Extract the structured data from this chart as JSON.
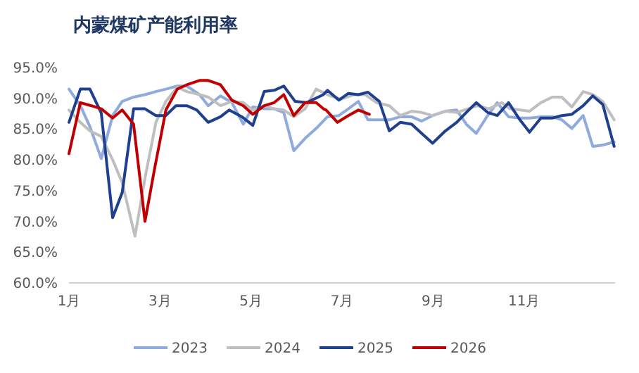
{
  "chart_data": {
    "type": "line",
    "title": "内蒙煤矿产能利用率",
    "xlim": [
      1,
      13
    ],
    "xticks": [
      {
        "value": 1,
        "label": "1月"
      },
      {
        "value": 3,
        "label": "3月"
      },
      {
        "value": 5,
        "label": "5月"
      },
      {
        "value": 7,
        "label": "7月"
      },
      {
        "value": 9,
        "label": "9月"
      },
      {
        "value": 11,
        "label": "11月"
      }
    ],
    "ylim": [
      60,
      95
    ],
    "yticks": [
      {
        "value": 60,
        "label": "60.0%"
      },
      {
        "value": 65,
        "label": "65.0%"
      },
      {
        "value": 70,
        "label": "70.0%"
      },
      {
        "value": 75,
        "label": "75.0%"
      },
      {
        "value": 80,
        "label": "80.0%"
      },
      {
        "value": 85,
        "label": "85.0%"
      },
      {
        "value": 90,
        "label": "90.0%"
      },
      {
        "value": 95,
        "label": "95.0%"
      }
    ],
    "grid": false,
    "legend": "bottom",
    "marker": "none",
    "line_style": "solid",
    "series": [
      {
        "name": "2023",
        "color": "#8faadc",
        "x": [
          1.0,
          1.25,
          1.46,
          1.71,
          1.96,
          2.17,
          2.42,
          2.67,
          2.91,
          3.13,
          3.38,
          3.59,
          3.87,
          4.06,
          4.33,
          4.58,
          4.83,
          5.04,
          5.29,
          5.51,
          5.72,
          5.94,
          6.19,
          6.43,
          6.68,
          6.93,
          7.14,
          7.36,
          7.57,
          7.82,
          8.04,
          8.28,
          8.53,
          8.75,
          8.99,
          9.27,
          9.52,
          9.73,
          9.95,
          10.2,
          10.41,
          10.66,
          10.91,
          11.12,
          11.37,
          11.62,
          11.83,
          12.05,
          12.3,
          12.51,
          12.73,
          12.98
        ],
        "values": [
          91.5,
          88.8,
          85.4,
          80.2,
          87.2,
          89.5,
          90.2,
          90.6,
          91.1,
          91.5,
          92,
          92,
          90.6,
          88.8,
          90.4,
          89.3,
          85.8,
          88.6,
          88.3,
          88.3,
          87.7,
          81.5,
          83.5,
          85.1,
          87,
          87.2,
          88.3,
          89.5,
          86.5,
          86.5,
          86.5,
          87,
          87,
          86.3,
          87.2,
          87.9,
          88.1,
          85.8,
          84.3,
          87.2,
          89.3,
          87,
          86.8,
          86.8,
          87,
          87,
          86.5,
          85.1,
          87.2,
          82.2,
          82.4,
          82.9
        ]
      },
      {
        "name": "2024",
        "color": "#bfbfbf",
        "x": [
          1.0,
          1.25,
          1.46,
          1.71,
          1.96,
          2.17,
          2.45,
          2.67,
          2.91,
          3.13,
          3.38,
          3.59,
          3.87,
          4.06,
          4.33,
          4.58,
          4.83,
          5.04,
          5.29,
          5.51,
          5.72,
          5.94,
          6.19,
          6.43,
          6.74,
          6.99,
          7.27,
          7.51,
          7.76,
          8.04,
          8.28,
          8.53,
          8.75,
          8.99,
          9.27,
          9.52,
          9.77,
          9.98,
          10.23,
          10.51,
          10.69,
          10.91,
          11.12,
          11.37,
          11.62,
          11.83,
          12.05,
          12.3,
          12.51,
          12.73,
          12.98
        ],
        "values": [
          88.1,
          86.1,
          84.7,
          83.8,
          80,
          76.3,
          67.6,
          77,
          86.1,
          89.5,
          91.8,
          91.1,
          90.6,
          90.2,
          88.8,
          89.5,
          89.3,
          88.1,
          88.8,
          88.3,
          88.1,
          87,
          88.3,
          91.5,
          90.4,
          89.9,
          90.6,
          90.6,
          89.3,
          88.8,
          87.2,
          87.9,
          87.7,
          87.2,
          87.9,
          87.7,
          88.3,
          88.8,
          88.3,
          89.3,
          88.3,
          88.1,
          87.9,
          89.3,
          90.2,
          90.2,
          88.6,
          91.1,
          90.6,
          89.5,
          86.5
        ]
      },
      {
        "name": "2025",
        "color": "#1f3f8f",
        "x": [
          1.0,
          1.25,
          1.46,
          1.71,
          1.96,
          2.17,
          2.42,
          2.67,
          2.91,
          3.13,
          3.35,
          3.59,
          3.81,
          4.06,
          4.33,
          4.52,
          4.8,
          5.04,
          5.29,
          5.51,
          5.72,
          5.97,
          6.22,
          6.59,
          6.68,
          6.93,
          7.14,
          7.36,
          7.57,
          7.82,
          8.04,
          8.28,
          8.53,
          8.75,
          8.99,
          9.27,
          9.52,
          9.73,
          9.95,
          10.2,
          10.41,
          10.66,
          10.91,
          11.12,
          11.37,
          11.62,
          11.83,
          12.05,
          12.3,
          12.51,
          12.73,
          12.98
        ],
        "values": [
          86.1,
          91.5,
          91.5,
          87.6,
          70.6,
          74.7,
          88.3,
          88.3,
          87.2,
          87.2,
          88.8,
          88.8,
          88.1,
          86.1,
          87,
          88.1,
          87,
          85.6,
          91.1,
          91.3,
          92,
          89.5,
          89.3,
          90.6,
          91.3,
          89.7,
          90.8,
          90.6,
          91,
          89.5,
          84.7,
          86.1,
          85.8,
          84.3,
          82.7,
          84.7,
          86.1,
          87.7,
          89.3,
          87.7,
          87.2,
          89.3,
          86.5,
          84.5,
          86.8,
          86.8,
          87.2,
          87.4,
          88.8,
          90.4,
          89,
          82.2
        ]
      },
      {
        "name": "2026",
        "color": "#c00000",
        "x": [
          1.0,
          1.25,
          1.49,
          1.71,
          1.96,
          2.17,
          2.42,
          2.67,
          2.88,
          3.13,
          3.38,
          3.59,
          3.87,
          4.06,
          4.33,
          4.58,
          4.83,
          5.04,
          5.29,
          5.51,
          5.72,
          5.94,
          6.19,
          6.43,
          6.59,
          6.65,
          6.9,
          7.14,
          7.36,
          7.6
        ],
        "values": [
          81,
          89.3,
          88.8,
          88.3,
          86.8,
          88.1,
          85.8,
          70,
          78.5,
          88.1,
          91.5,
          92.2,
          92.9,
          92.9,
          92.2,
          89.7,
          88.8,
          87.4,
          88.8,
          89.3,
          90.6,
          87.2,
          89.3,
          89.3,
          88.3,
          88.1,
          86.1,
          87.2,
          88.1,
          87.4
        ]
      }
    ]
  }
}
